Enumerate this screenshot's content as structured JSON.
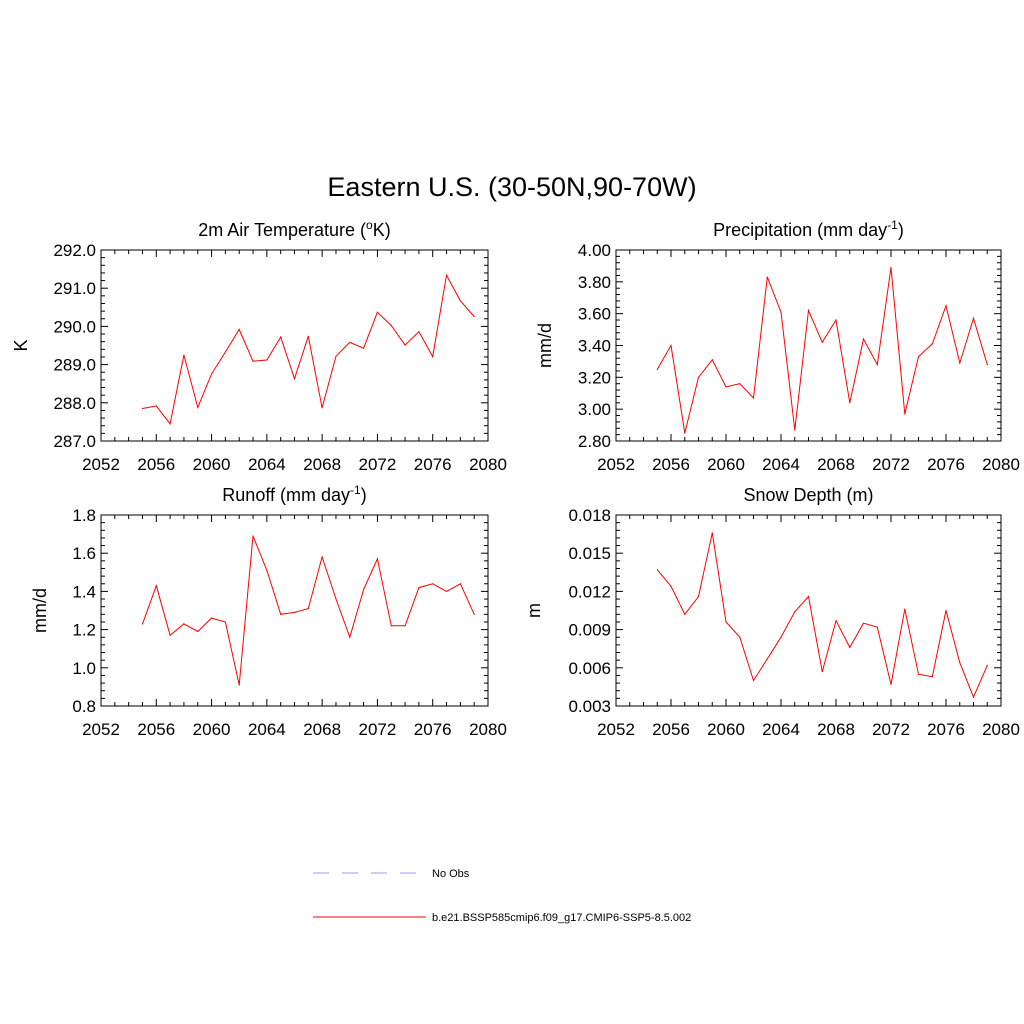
{
  "title": "Eastern U.S. (30-50N,90-70W)",
  "colors": {
    "model": "#ff0000",
    "obs": "#9999ff",
    "axis": "#000000"
  },
  "legend": {
    "entries": [
      {
        "label": "No Obs",
        "style": "dashed",
        "color": "#9999ff"
      },
      {
        "label": "b.e21.BSSP585cmip6.f09_g17.CMIP6-SSP5-8.5.002",
        "style": "solid",
        "color": "#ff0000"
      }
    ]
  },
  "chart_data": [
    {
      "type": "line",
      "title": {
        "main": "2m Air Temperature (",
        "sup": "o",
        "tail": "K)"
      },
      "xlabel": "",
      "ylabel": "K",
      "xlim": [
        2052,
        2080
      ],
      "ylim": [
        287.0,
        292.0
      ],
      "xticks": [
        "2052",
        "2056",
        "2060",
        "2064",
        "2068",
        "2072",
        "2076",
        "2080"
      ],
      "yticks": [
        "287.0",
        "288.0",
        "289.0",
        "290.0",
        "291.0",
        "292.0"
      ],
      "series": [
        {
          "name": "b.e21.BSSP585cmip6.f09_g17.CMIP6-SSP5-8.5.002",
          "x": [
            2055,
            2056,
            2057,
            2058,
            2059,
            2060,
            2061,
            2062,
            2063,
            2064,
            2065,
            2066,
            2067,
            2068,
            2069,
            2070,
            2071,
            2072,
            2073,
            2074,
            2075,
            2076,
            2077,
            2078,
            2079
          ],
          "values": [
            287.85,
            287.92,
            287.45,
            289.25,
            287.88,
            288.76,
            289.33,
            289.92,
            289.09,
            289.12,
            289.72,
            288.63,
            289.74,
            287.87,
            289.22,
            289.58,
            289.43,
            290.37,
            290.02,
            289.51,
            289.86,
            289.21,
            291.34,
            290.67,
            290.26
          ]
        }
      ]
    },
    {
      "type": "line",
      "title": {
        "main": "Precipitation (mm day",
        "sup": "-1",
        "tail": ")"
      },
      "xlabel": "",
      "ylabel": "mm/d",
      "xlim": [
        2052,
        2080
      ],
      "ylim": [
        2.8,
        4.0
      ],
      "xticks": [
        "2052",
        "2056",
        "2060",
        "2064",
        "2068",
        "2072",
        "2076",
        "2080"
      ],
      "yticks": [
        "2.80",
        "3.00",
        "3.20",
        "3.40",
        "3.60",
        "3.80",
        "4.00"
      ],
      "series": [
        {
          "name": "b.e21.BSSP585cmip6.f09_g17.CMIP6-SSP5-8.5.002",
          "x": [
            2055,
            2056,
            2057,
            2058,
            2059,
            2060,
            2061,
            2062,
            2063,
            2064,
            2065,
            2066,
            2067,
            2068,
            2069,
            2070,
            2071,
            2072,
            2073,
            2074,
            2075,
            2076,
            2077,
            2078,
            2079
          ],
          "values": [
            3.25,
            3.4,
            2.85,
            3.2,
            3.31,
            3.14,
            3.16,
            3.07,
            3.83,
            3.61,
            2.87,
            3.62,
            3.42,
            3.56,
            3.04,
            3.44,
            3.28,
            3.89,
            2.97,
            3.33,
            3.41,
            3.65,
            3.29,
            3.57,
            3.28
          ]
        }
      ]
    },
    {
      "type": "line",
      "title": {
        "main": "Runoff (mm day",
        "sup": "-1",
        "tail": ")"
      },
      "xlabel": "",
      "ylabel": "mm/d",
      "xlim": [
        2052,
        2080
      ],
      "ylim": [
        0.8,
        1.8
      ],
      "xticks": [
        "2052",
        "2056",
        "2060",
        "2064",
        "2068",
        "2072",
        "2076",
        "2080"
      ],
      "yticks": [
        "0.8",
        "1.0",
        "1.2",
        "1.4",
        "1.6",
        "1.8"
      ],
      "series": [
        {
          "name": "b.e21.BSSP585cmip6.f09_g17.CMIP6-SSP5-8.5.002",
          "x": [
            2055,
            2056,
            2057,
            2058,
            2059,
            2060,
            2061,
            2062,
            2063,
            2064,
            2065,
            2066,
            2067,
            2068,
            2069,
            2070,
            2071,
            2072,
            2073,
            2074,
            2075,
            2076,
            2077,
            2078,
            2079
          ],
          "values": [
            1.23,
            1.43,
            1.17,
            1.23,
            1.19,
            1.26,
            1.24,
            0.91,
            1.69,
            1.51,
            1.28,
            1.29,
            1.31,
            1.58,
            1.36,
            1.16,
            1.41,
            1.57,
            1.22,
            1.22,
            1.42,
            1.44,
            1.4,
            1.44,
            1.28
          ]
        }
      ]
    },
    {
      "type": "line",
      "title": {
        "main": "Snow Depth (m)",
        "sup": "",
        "tail": ""
      },
      "xlabel": "",
      "ylabel": "m",
      "xlim": [
        2052,
        2080
      ],
      "ylim": [
        0.003,
        0.018
      ],
      "xticks": [
        "2052",
        "2056",
        "2060",
        "2064",
        "2068",
        "2072",
        "2076",
        "2080"
      ],
      "yticks": [
        "0.003",
        "0.006",
        "0.009",
        "0.012",
        "0.015",
        "0.018"
      ],
      "series": [
        {
          "name": "b.e21.BSSP585cmip6.f09_g17.CMIP6-SSP5-8.5.002",
          "x": [
            2055,
            2056,
            2057,
            2058,
            2059,
            2060,
            2061,
            2062,
            2063,
            2064,
            2065,
            2066,
            2067,
            2068,
            2069,
            2070,
            2071,
            2072,
            2073,
            2074,
            2075,
            2076,
            2077,
            2078,
            2079
          ],
          "values": [
            0.0137,
            0.0124,
            0.0102,
            0.0116,
            0.0166,
            0.0096,
            0.0084,
            0.005,
            0.0067,
            0.0084,
            0.0104,
            0.0116,
            0.0057,
            0.0097,
            0.0076,
            0.0095,
            0.0092,
            0.0047,
            0.0106,
            0.0055,
            0.0053,
            0.0105,
            0.0064,
            0.0037,
            0.0062
          ]
        }
      ]
    }
  ]
}
